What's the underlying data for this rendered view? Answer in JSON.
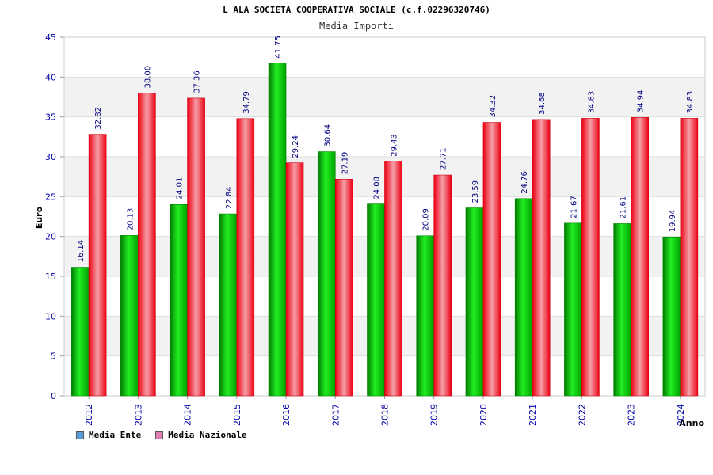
{
  "chart_data": {
    "type": "bar",
    "title": "L ALA SOCIETA COOPERATIVA SOCIALE (c.f.02296320746)",
    "subtitle": "Media Importi",
    "ylabel": "Euro",
    "xlabel": "Anno",
    "ylim": [
      0,
      45
    ],
    "yticks": [
      "0",
      "5",
      "10",
      "15",
      "20",
      "25",
      "30",
      "35",
      "40",
      "45"
    ],
    "categories": [
      "2012",
      "2013",
      "2014",
      "2015",
      "2016",
      "2017",
      "2018",
      "2019",
      "2020",
      "2021",
      "2022",
      "2023",
      "2024"
    ],
    "series": [
      {
        "name": "Media Ente",
        "values": [
          16.14,
          20.13,
          24.01,
          22.84,
          41.75,
          30.64,
          24.08,
          20.09,
          23.59,
          24.76,
          21.67,
          21.61,
          19.94
        ],
        "labels": [
          "16.14",
          "20.13",
          "24.01",
          "22.84",
          "41.75",
          "30.64",
          "24.08",
          "20.09",
          "23.59",
          "24.76",
          "21.67",
          "21.61",
          "19.94"
        ]
      },
      {
        "name": "Media Nazionale",
        "values": [
          32.82,
          38.0,
          37.36,
          34.79,
          29.24,
          27.19,
          29.43,
          27.71,
          34.32,
          34.68,
          34.83,
          34.94,
          34.83
        ],
        "labels": [
          "32.82",
          "38.00",
          "37.36",
          "34.79",
          "29.24",
          "27.19",
          "29.43",
          "27.71",
          "34.32",
          "34.68",
          "34.83",
          "34.94",
          "34.83"
        ]
      }
    ],
    "legend": [
      {
        "name": "Media Ente",
        "color": "#5b9bd5"
      },
      {
        "name": "Media Nazionale",
        "color": "#e07fb4"
      }
    ],
    "grid": true,
    "legend_position": "bottom-left",
    "colors": {
      "ente": "#00cc00",
      "nazionale": "#ee1122",
      "axis_text": "#0000aa",
      "label_text": "#000080"
    }
  }
}
